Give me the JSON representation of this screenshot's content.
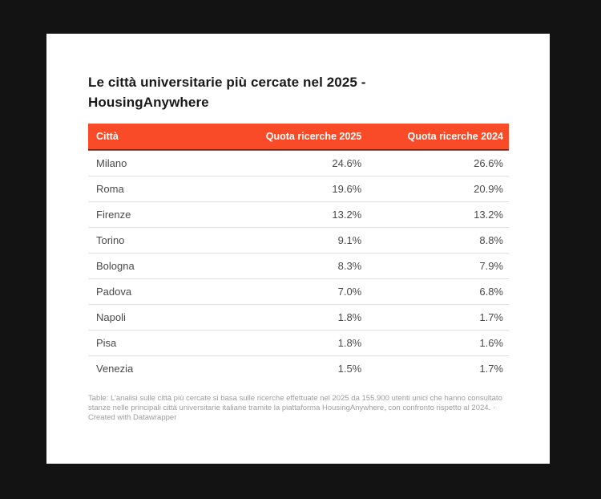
{
  "colors": {
    "page_background": "#131313",
    "card_background": "#ffffff",
    "accent": "#F94B28",
    "title_text": "#191919",
    "body_text": "#4a4a4a",
    "footer_text": "#9d9d9d"
  },
  "chart_data": {
    "type": "table",
    "title": "Le città universitarie più cercate nel 2025 - HousingAnywhere",
    "columns": [
      "Città",
      "Quota ricerche 2025",
      "Quota ricerche 2024"
    ],
    "rows": [
      [
        "Milano",
        "24.6%",
        "26.6%"
      ],
      [
        "Roma",
        "19.6%",
        "20.9%"
      ],
      [
        "Firenze",
        "13.2%",
        "13.2%"
      ],
      [
        "Torino",
        "9.1%",
        "8.8%"
      ],
      [
        "Bologna",
        "8.3%",
        "7.9%"
      ],
      [
        "Padova",
        "7.0%",
        "6.8%"
      ],
      [
        "Napoli",
        "1.8%",
        "1.7%"
      ],
      [
        "Pisa",
        "1.8%",
        "1.6%"
      ],
      [
        "Venezia",
        "1.5%",
        "1.7%"
      ]
    ],
    "legend_position": "none",
    "grid": "row-dividers"
  },
  "footer": {
    "notes": "Table: L’analisi sulle città più cercate si basa sulle ricerche effettuate nel 2025 da 155.900 utenti unici che hanno consultato stanze nelle principali città universitarie italiane tramite la piattaforma HousingAnywhere, con confronto rispetto al 2024.",
    "separator": "·",
    "attribution": "Created with Datawrapper"
  }
}
